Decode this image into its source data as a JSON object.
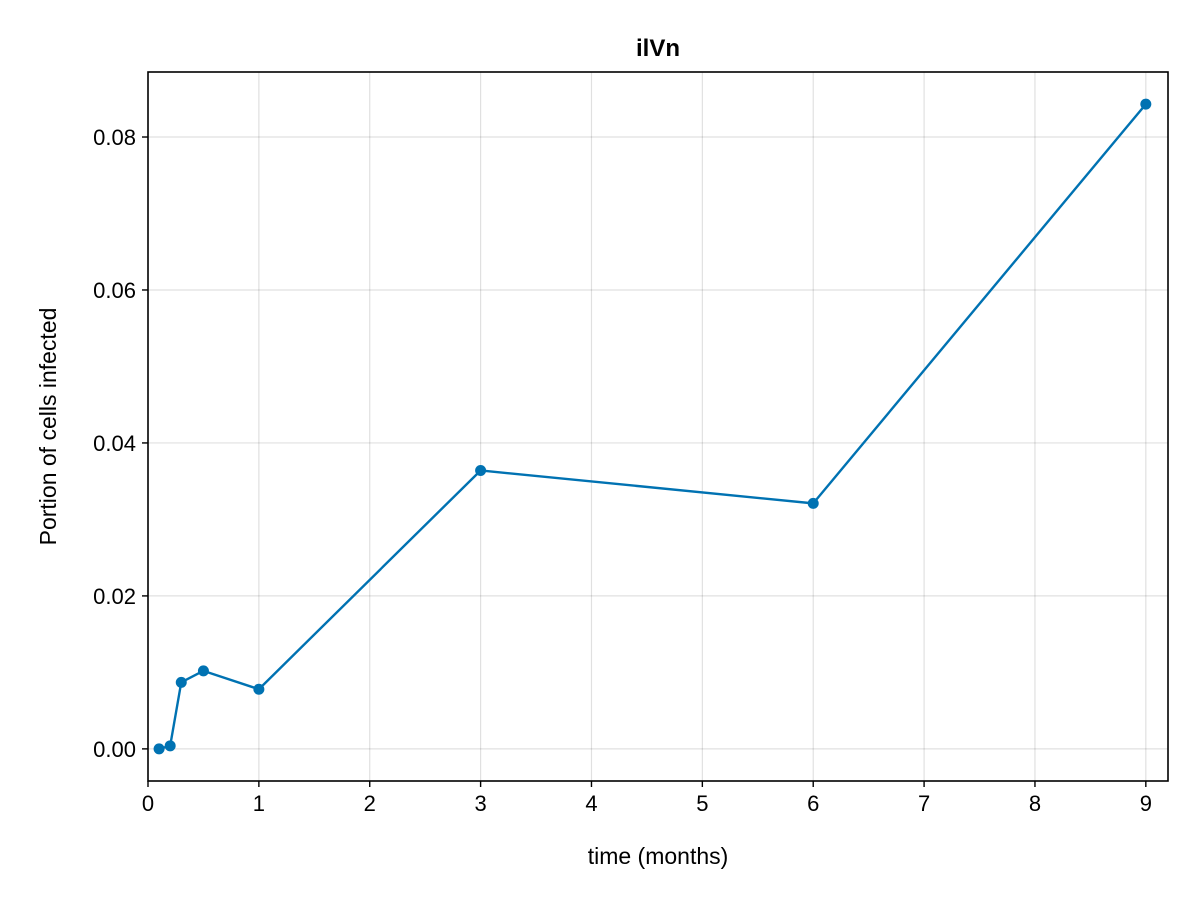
{
  "chart_data": {
    "type": "line",
    "title": "ilVn",
    "xlabel": "time (months)",
    "ylabel": "Portion of cells infected",
    "xlim": [
      0,
      9.2
    ],
    "ylim": [
      -0.0042,
      0.0885
    ],
    "xticks": [
      0,
      1,
      2,
      3,
      4,
      5,
      6,
      7,
      8,
      9
    ],
    "xtick_labels": [
      "0",
      "1",
      "2",
      "3",
      "4",
      "5",
      "6",
      "7",
      "8",
      "9"
    ],
    "yticks": [
      0.0,
      0.02,
      0.04,
      0.06,
      0.08
    ],
    "ytick_labels": [
      "0.00",
      "0.02",
      "0.04",
      "0.06",
      "0.08"
    ],
    "grid": true,
    "legend": false,
    "series": [
      {
        "color": "#0072b2",
        "marker": "circle",
        "x": [
          0.1,
          0.2,
          0.3,
          0.5,
          1,
          3,
          6,
          9
        ],
        "y": [
          0.0,
          0.0004,
          0.0087,
          0.0102,
          0.0078,
          0.0364,
          0.0321,
          0.0843
        ]
      }
    ]
  }
}
